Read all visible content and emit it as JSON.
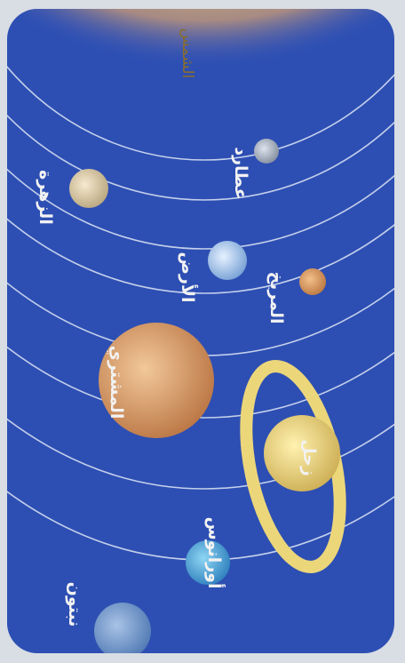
{
  "planets": [
    {
      "label": "الشمس"
    },
    {
      "label": "عطارد"
    },
    {
      "label": "الزهرة"
    },
    {
      "label": "الأرض"
    },
    {
      "label": "المريخ"
    },
    {
      "label": "المشتري"
    },
    {
      "label": "زحل"
    },
    {
      "label": "أورانوس"
    },
    {
      "label": "نبتون"
    }
  ]
}
